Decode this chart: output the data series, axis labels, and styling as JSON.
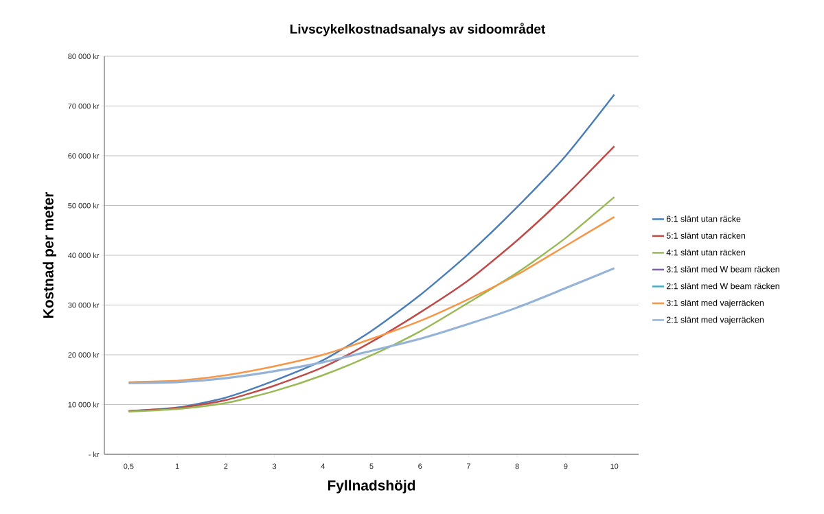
{
  "chart_data": {
    "type": "line",
    "title": "Livscykelkostnadsanalys av sidoområdet",
    "xlabel": "Fyllnadshöjd",
    "ylabel": "Kostnad per meter",
    "categories": [
      "0,5",
      "1",
      "2",
      "3",
      "4",
      "5",
      "6",
      "7",
      "8",
      "9",
      "10"
    ],
    "ylim": [
      0,
      80000
    ],
    "yticks": [
      {
        "value": 0,
        "label": "-  kr"
      },
      {
        "value": 10000,
        "label": "10 000 kr"
      },
      {
        "value": 20000,
        "label": "20 000 kr"
      },
      {
        "value": 30000,
        "label": "30 000 kr"
      },
      {
        "value": 40000,
        "label": "40 000 kr"
      },
      {
        "value": 50000,
        "label": "50 000 kr"
      },
      {
        "value": 60000,
        "label": "60 000 kr"
      },
      {
        "value": 70000,
        "label": "70 000 kr"
      },
      {
        "value": 80000,
        "label": "80 000 kr"
      }
    ],
    "grid": "y",
    "legend": "right",
    "marker": "none",
    "line_style": "solid",
    "series": [
      {
        "name": "6:1  slänt utan räcke",
        "color": "#4a7ebb",
        "values": [
          8700,
          9400,
          11400,
          14800,
          18900,
          24800,
          32000,
          40300,
          49700,
          60000,
          72300
        ]
      },
      {
        "name": "5:1  slänt utan räcken",
        "color": "#be4b48",
        "values": [
          8700,
          9300,
          10900,
          13800,
          17500,
          22600,
          28500,
          35000,
          43000,
          52000,
          61900
        ]
      },
      {
        "name": "4:1  slänt utan räcken",
        "color": "#98b954",
        "values": [
          8600,
          9100,
          10300,
          12700,
          15900,
          19900,
          24700,
          30500,
          36500,
          43500,
          51700
        ]
      },
      {
        "name": "3:1 slänt med W beam räcken",
        "color": "#7d60a0",
        "values": [
          null,
          null,
          null,
          null,
          null,
          null,
          null,
          null,
          null,
          null,
          null
        ]
      },
      {
        "name": "2:1 slänt med W beam räcken",
        "color": "#46aac5",
        "values": [
          null,
          null,
          null,
          null,
          null,
          null,
          null,
          null,
          null,
          null,
          null
        ]
      },
      {
        "name": "3:1 slänt med vajerräcken",
        "color": "#f79646",
        "values": [
          14500,
          14800,
          15900,
          17700,
          20000,
          23200,
          26800,
          31200,
          36100,
          41900,
          47700
        ]
      },
      {
        "name": "2:1 slänt med vajerräcken",
        "color": "#95b3d7",
        "values": [
          14300,
          14500,
          15300,
          16700,
          18500,
          20800,
          23200,
          26200,
          29500,
          33400,
          37400
        ]
      }
    ]
  }
}
